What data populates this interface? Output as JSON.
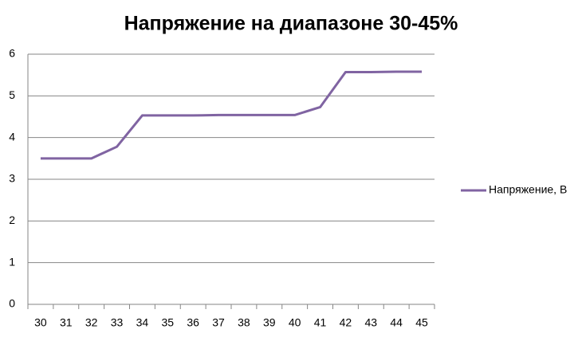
{
  "chart_data": {
    "type": "line",
    "title": "Напряжение на диапазоне 30-45%",
    "categories": [
      "30",
      "31",
      "32",
      "33",
      "34",
      "35",
      "36",
      "37",
      "38",
      "39",
      "40",
      "41",
      "42",
      "43",
      "44",
      "45"
    ],
    "series": [
      {
        "name": "Напряжение, В",
        "color": "#8064a2",
        "values": [
          3.5,
          3.5,
          3.5,
          3.78,
          4.53,
          4.53,
          4.53,
          4.54,
          4.54,
          4.54,
          4.54,
          4.73,
          5.57,
          5.57,
          5.58,
          5.58
        ]
      }
    ],
    "ylim": [
      0,
      6
    ],
    "yticks": [
      0,
      1,
      2,
      3,
      4,
      5,
      6
    ],
    "grid": true,
    "legend": "right"
  }
}
